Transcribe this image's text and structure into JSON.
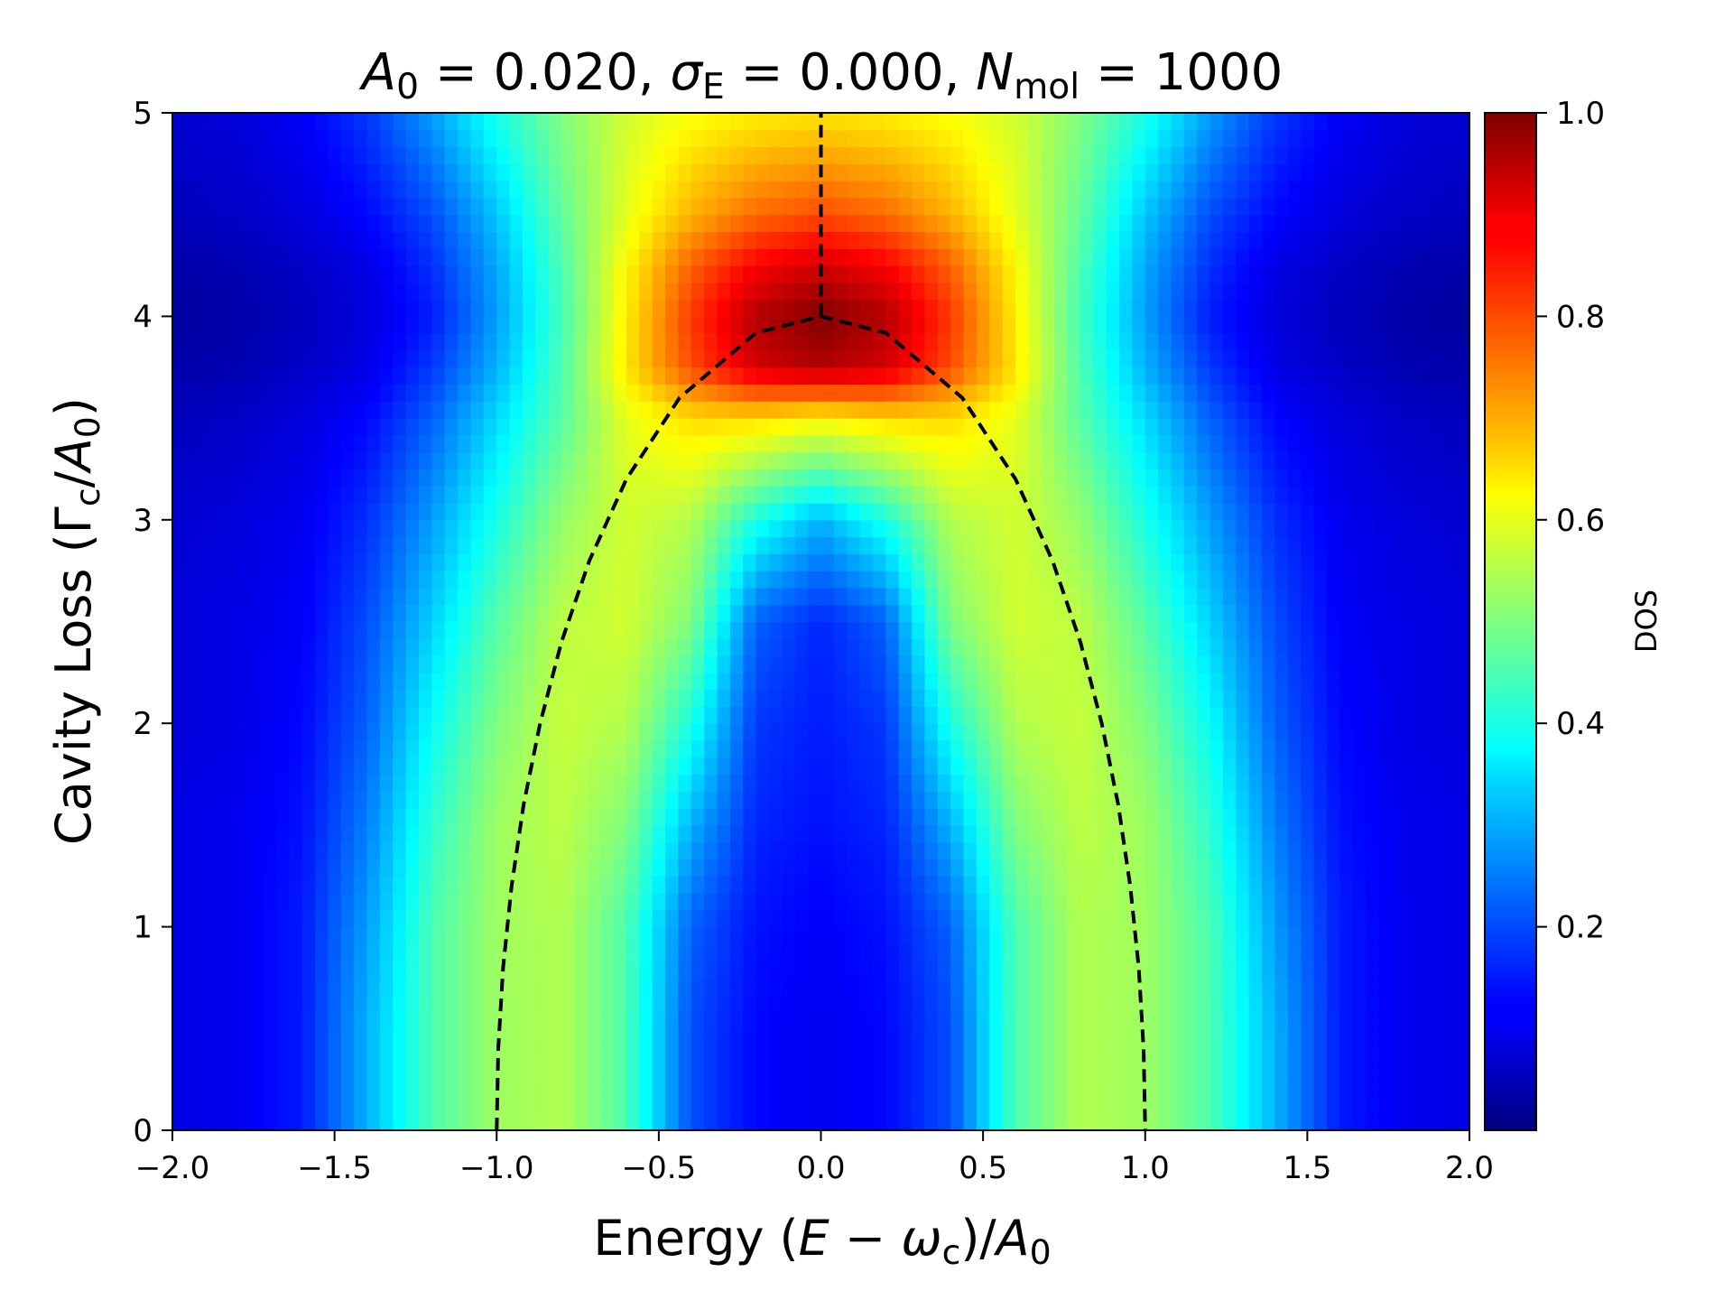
{
  "chart_data": {
    "type": "heatmap",
    "title": {
      "parts": [
        {
          "text": "A",
          "style": "italic"
        },
        {
          "text": "0",
          "style": "sub"
        },
        {
          "text": " = 0.020, "
        },
        {
          "text": "σ",
          "style": "italic"
        },
        {
          "text": "E",
          "style": "sub"
        },
        {
          "text": " = 0.000,  "
        },
        {
          "text": "N",
          "style": "italic"
        },
        {
          "text": "mol",
          "style": "sub"
        },
        {
          "text": " = 1000"
        }
      ]
    },
    "xlabel": {
      "parts": [
        {
          "text": "Energy ("
        },
        {
          "text": "E",
          "style": "italic"
        },
        {
          "text": " − "
        },
        {
          "text": "ω",
          "style": "italic"
        },
        {
          "text": "c",
          "style": "sub"
        },
        {
          "text": ")/"
        },
        {
          "text": "A",
          "style": "italic"
        },
        {
          "text": "0",
          "style": "sub"
        }
      ]
    },
    "ylabel": {
      "parts": [
        {
          "text": "Cavity Loss (Γ"
        },
        {
          "text": "c",
          "style": "sub"
        },
        {
          "text": "/"
        },
        {
          "text": "A",
          "style": "italic"
        },
        {
          "text": "0",
          "style": "sub"
        },
        {
          "text": ")"
        }
      ]
    },
    "xlim": [
      -2.0,
      2.0
    ],
    "ylim": [
      0,
      5
    ],
    "xticks": [
      {
        "value": -2.0,
        "label": "−2.0"
      },
      {
        "value": -1.5,
        "label": "−1.5"
      },
      {
        "value": -1.0,
        "label": "−1.0"
      },
      {
        "value": -0.5,
        "label": "−0.5"
      },
      {
        "value": 0.0,
        "label": "0.0"
      },
      {
        "value": 0.5,
        "label": "0.5"
      },
      {
        "value": 1.0,
        "label": "1.0"
      },
      {
        "value": 1.5,
        "label": "1.5"
      },
      {
        "value": 2.0,
        "label": "2.0"
      }
    ],
    "yticks": [
      {
        "value": 0,
        "label": "0"
      },
      {
        "value": 1,
        "label": "1"
      },
      {
        "value": 2,
        "label": "2"
      },
      {
        "value": 3,
        "label": "3"
      },
      {
        "value": 4,
        "label": "4"
      },
      {
        "value": 5,
        "label": "5"
      }
    ],
    "colormap": "jet",
    "colorbar": {
      "label": "DOS",
      "range": [
        0.0,
        1.0
      ],
      "ticks": [
        {
          "value": 0.2,
          "label": "0.2"
        },
        {
          "value": 0.4,
          "label": "0.4"
        },
        {
          "value": 0.6,
          "label": "0.6"
        },
        {
          "value": 0.8,
          "label": "0.8"
        },
        {
          "value": 1.0,
          "label": "1.0"
        }
      ]
    },
    "grid": false,
    "dos_grid": {
      "x": [
        -2.0,
        -1.8,
        -1.6,
        -1.4,
        -1.2,
        -1.0,
        -0.8,
        -0.6,
        -0.4,
        -0.2,
        0.0,
        0.2,
        0.4,
        0.6,
        0.8,
        1.0,
        1.2,
        1.4,
        1.6,
        1.8,
        2.0
      ],
      "y": [
        0,
        0.5,
        1.0,
        1.5,
        2.0,
        2.5,
        3.0,
        3.5,
        3.75,
        4.0,
        4.25,
        4.5,
        5.0
      ],
      "z": [
        [
          0.1,
          0.11,
          0.15,
          0.3,
          0.45,
          0.53,
          0.55,
          0.45,
          0.2,
          0.13,
          0.11,
          0.13,
          0.2,
          0.45,
          0.55,
          0.53,
          0.45,
          0.3,
          0.15,
          0.11,
          0.1
        ],
        [
          0.1,
          0.11,
          0.15,
          0.3,
          0.45,
          0.53,
          0.55,
          0.45,
          0.2,
          0.13,
          0.11,
          0.13,
          0.2,
          0.45,
          0.55,
          0.53,
          0.45,
          0.3,
          0.15,
          0.11,
          0.1
        ],
        [
          0.1,
          0.11,
          0.15,
          0.28,
          0.45,
          0.53,
          0.55,
          0.45,
          0.22,
          0.14,
          0.12,
          0.14,
          0.22,
          0.45,
          0.55,
          0.53,
          0.45,
          0.28,
          0.15,
          0.11,
          0.1
        ],
        [
          0.1,
          0.11,
          0.14,
          0.25,
          0.42,
          0.53,
          0.56,
          0.5,
          0.3,
          0.16,
          0.14,
          0.16,
          0.3,
          0.5,
          0.56,
          0.53,
          0.42,
          0.25,
          0.14,
          0.11,
          0.1
        ],
        [
          0.09,
          0.1,
          0.13,
          0.22,
          0.38,
          0.5,
          0.57,
          0.55,
          0.4,
          0.18,
          0.15,
          0.18,
          0.4,
          0.55,
          0.57,
          0.5,
          0.38,
          0.22,
          0.13,
          0.1,
          0.09
        ],
        [
          0.09,
          0.1,
          0.12,
          0.2,
          0.33,
          0.46,
          0.56,
          0.58,
          0.5,
          0.22,
          0.16,
          0.22,
          0.5,
          0.58,
          0.56,
          0.46,
          0.33,
          0.2,
          0.12,
          0.1,
          0.09
        ],
        [
          0.08,
          0.09,
          0.11,
          0.17,
          0.28,
          0.4,
          0.52,
          0.58,
          0.55,
          0.4,
          0.3,
          0.4,
          0.55,
          0.58,
          0.52,
          0.4,
          0.28,
          0.17,
          0.11,
          0.09,
          0.08
        ],
        [
          0.06,
          0.07,
          0.09,
          0.13,
          0.22,
          0.34,
          0.46,
          0.6,
          0.66,
          0.66,
          0.63,
          0.66,
          0.66,
          0.6,
          0.46,
          0.34,
          0.22,
          0.13,
          0.09,
          0.07,
          0.06
        ],
        [
          0.04,
          0.05,
          0.07,
          0.1,
          0.18,
          0.3,
          0.45,
          0.65,
          0.8,
          0.92,
          0.95,
          0.92,
          0.8,
          0.65,
          0.45,
          0.3,
          0.18,
          0.1,
          0.07,
          0.05,
          0.04
        ],
        [
          0.03,
          0.04,
          0.06,
          0.09,
          0.15,
          0.28,
          0.44,
          0.64,
          0.82,
          0.95,
          1.0,
          0.95,
          0.82,
          0.64,
          0.44,
          0.28,
          0.15,
          0.09,
          0.06,
          0.04,
          0.03
        ],
        [
          0.04,
          0.05,
          0.07,
          0.1,
          0.17,
          0.29,
          0.45,
          0.63,
          0.78,
          0.88,
          0.92,
          0.88,
          0.78,
          0.63,
          0.45,
          0.29,
          0.17,
          0.1,
          0.07,
          0.05,
          0.04
        ],
        [
          0.06,
          0.07,
          0.09,
          0.13,
          0.2,
          0.32,
          0.47,
          0.6,
          0.7,
          0.77,
          0.8,
          0.77,
          0.7,
          0.6,
          0.47,
          0.32,
          0.2,
          0.13,
          0.09,
          0.07,
          0.06
        ],
        [
          0.08,
          0.09,
          0.12,
          0.18,
          0.28,
          0.4,
          0.5,
          0.58,
          0.62,
          0.64,
          0.65,
          0.64,
          0.62,
          0.58,
          0.5,
          0.4,
          0.28,
          0.18,
          0.12,
          0.09,
          0.08
        ]
      ]
    },
    "overlay_lines": [
      {
        "style": "dashed",
        "color": "#000000",
        "x": [
          -1.0,
          -0.995,
          -0.98,
          -0.954,
          -0.917,
          -0.866,
          -0.8,
          -0.714,
          -0.6,
          -0.436,
          -0.2,
          0.0,
          0.2,
          0.436,
          0.6,
          0.714,
          0.8,
          0.866,
          0.917,
          0.954,
          0.98,
          0.995,
          1.0
        ],
        "y": [
          0.0,
          0.4,
          0.8,
          1.2,
          1.6,
          2.0,
          2.4,
          2.8,
          3.2,
          3.6,
          3.919,
          4.0,
          3.919,
          3.6,
          3.2,
          2.8,
          2.4,
          2.0,
          1.6,
          1.2,
          0.8,
          0.4,
          0.0
        ]
      },
      {
        "style": "dashed",
        "color": "#000000",
        "x": [
          0.0,
          0.0
        ],
        "y": [
          4.0,
          5.0
        ]
      }
    ]
  }
}
